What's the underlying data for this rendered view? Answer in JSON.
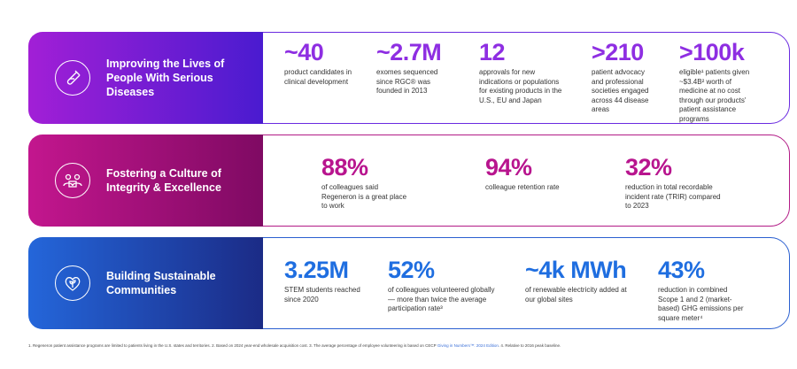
{
  "rows": [
    {
      "title": "Improving the Lives of People With Serious Diseases",
      "icon": "test-tube-icon",
      "stats": [
        {
          "value": "~40",
          "desc": "product candidates in clinical development"
        },
        {
          "value": "~2.7M",
          "desc": "exomes sequenced since RGC® was founded in 2013"
        },
        {
          "value": "12",
          "desc": "approvals for new indications or populations for existing products in the U.S., EU and Japan"
        },
        {
          "value": ">210",
          "desc": "patient advocacy and professional societies engaged across 44 disease areas"
        },
        {
          "value": ">100k",
          "desc": "eligible¹ patients given ~$3.4B² worth of medicine at no cost through our products' patient assistance programs"
        }
      ]
    },
    {
      "title": "Fostering a Culture of Integrity & Excellence",
      "icon": "people-group-icon",
      "stats": [
        {
          "value": "88%",
          "desc": "of colleagues said Regeneron is a great place to work"
        },
        {
          "value": "94%",
          "desc": "colleague retention rate"
        },
        {
          "value": "32%",
          "desc": "reduction in total recordable incident rate (TRIR) compared to 2023"
        }
      ]
    },
    {
      "title": "Building Sustainable Communities",
      "icon": "heart-leaf-icon",
      "stats": [
        {
          "value": "3.25M",
          "desc": "STEM students reached since 2020"
        },
        {
          "value": "52%",
          "desc": "of colleagues volunteered globally — more than twice the average participation rate³"
        },
        {
          "value": "~4k MWh",
          "desc": "of renewable electricity added at our global sites"
        },
        {
          "value": "43%",
          "desc": "reduction in combined Scope 1 and 2 (market-based) GHG emissions per square meter⁴"
        }
      ]
    }
  ],
  "footnote": {
    "pre": "1. Regeneron patient assistance programs are limited to patients living in the U.S. states and territories. 2. Based on 2024 year-end wholesale acquisition cost. 3. The average percentage of employee volunteering is based on CECP ",
    "link": "Giving in Numbers™: 2024 Edition",
    "post": ". 4. Relative to 2016 peak baseline."
  }
}
